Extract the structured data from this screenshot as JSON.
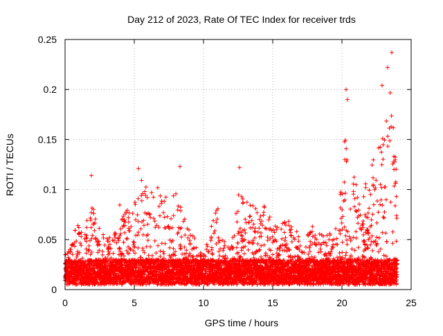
{
  "chart_data": {
    "type": "scatter",
    "title": "Day 212 of 2023, Rate Of TEC Index for receiver trds",
    "xlabel": "GPS time / hours",
    "ylabel": "ROTI / TECUs",
    "xlim": [
      0,
      25
    ],
    "ylim": [
      0,
      0.25
    ],
    "x_ticks": [
      0,
      5,
      10,
      15,
      20,
      25
    ],
    "x_tick_labels": [
      "0",
      "5",
      "10",
      "15",
      "20",
      "25"
    ],
    "y_ticks": [
      0,
      0.05,
      0.1,
      0.15,
      0.2,
      0.25
    ],
    "y_tick_labels": [
      "0",
      "0.05",
      "0.1",
      "0.15",
      "0.2",
      "0.25"
    ],
    "grid": true,
    "marker": "+",
    "marker_color": "#ff0000",
    "series": [
      {
        "name": "",
        "envelope_note": "dense samples every ~0.02 h from 0 to 24 h; typical values 0.005–0.03",
        "upper_envelope": [
          [
            0.0,
            0.04
          ],
          [
            0.5,
            0.06
          ],
          [
            1.0,
            0.065
          ],
          [
            1.5,
            0.07
          ],
          [
            2.0,
            0.09
          ],
          [
            2.5,
            0.06
          ],
          [
            3.0,
            0.055
          ],
          [
            3.5,
            0.05
          ],
          [
            4.0,
            0.09
          ],
          [
            4.5,
            0.08
          ],
          [
            5.0,
            0.095
          ],
          [
            5.5,
            0.11
          ],
          [
            6.0,
            0.1
          ],
          [
            6.5,
            0.105
          ],
          [
            7.0,
            0.1
          ],
          [
            7.5,
            0.09
          ],
          [
            8.0,
            0.105
          ],
          [
            8.5,
            0.09
          ],
          [
            9.0,
            0.06
          ],
          [
            9.5,
            0.05
          ],
          [
            10.0,
            0.035
          ],
          [
            10.5,
            0.06
          ],
          [
            11.0,
            0.085
          ],
          [
            11.5,
            0.05
          ],
          [
            12.0,
            0.04
          ],
          [
            12.5,
            0.1
          ],
          [
            13.0,
            0.09
          ],
          [
            13.5,
            0.1
          ],
          [
            14.0,
            0.09
          ],
          [
            14.5,
            0.085
          ],
          [
            15.0,
            0.07
          ],
          [
            15.5,
            0.06
          ],
          [
            16.0,
            0.075
          ],
          [
            16.5,
            0.06
          ],
          [
            17.0,
            0.065
          ],
          [
            17.5,
            0.06
          ],
          [
            18.0,
            0.065
          ],
          [
            18.5,
            0.055
          ],
          [
            19.0,
            0.06
          ],
          [
            19.5,
            0.06
          ],
          [
            20.0,
            0.13
          ],
          [
            20.5,
            0.18
          ],
          [
            21.0,
            0.11
          ],
          [
            21.5,
            0.1
          ],
          [
            22.0,
            0.135
          ],
          [
            22.5,
            0.14
          ],
          [
            23.0,
            0.16
          ],
          [
            23.5,
            0.2
          ],
          [
            24.0,
            0.11
          ]
        ],
        "peaks": [
          [
            1.9,
            0.114
          ],
          [
            5.3,
            0.121
          ],
          [
            8.3,
            0.123
          ],
          [
            12.6,
            0.122
          ],
          [
            20.3,
            0.2
          ],
          [
            20.4,
            0.19
          ],
          [
            22.9,
            0.204
          ],
          [
            23.3,
            0.222
          ],
          [
            23.6,
            0.237
          ]
        ]
      }
    ]
  }
}
